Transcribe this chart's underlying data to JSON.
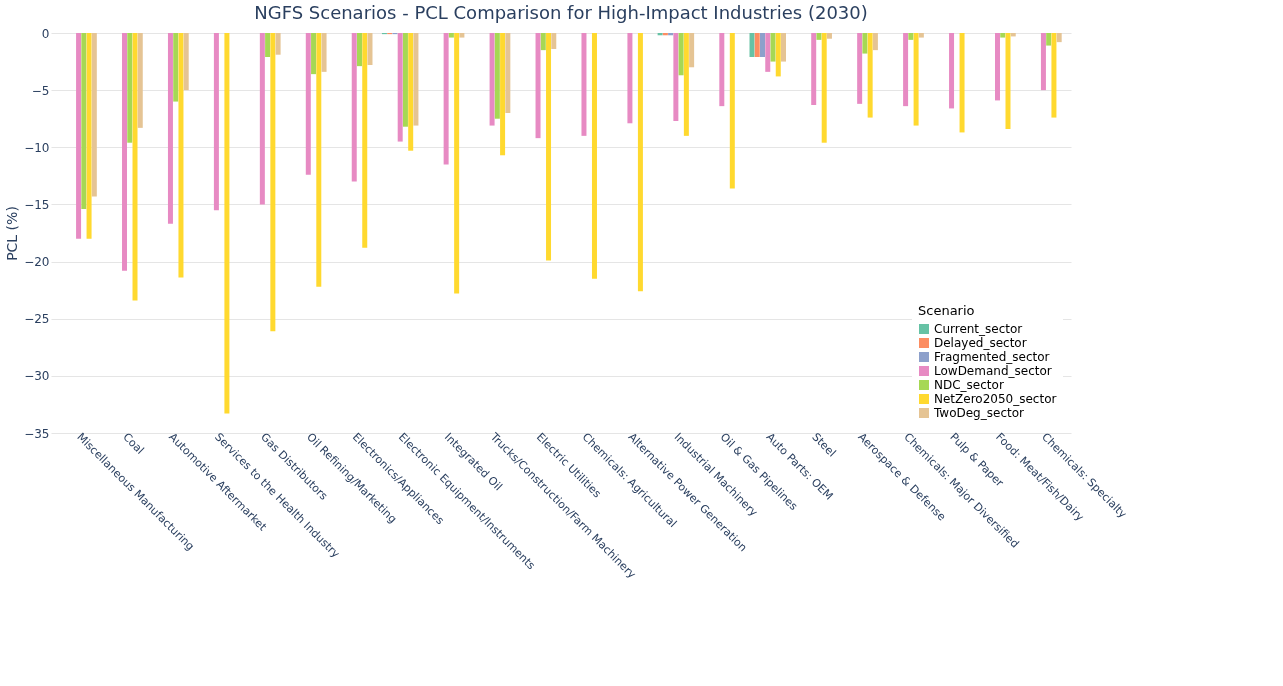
{
  "chart_data": {
    "type": "bar",
    "title": "NGFS Scenarios - PCL Comparison for High-Impact Industries (2030)",
    "ylabel": "PCL (%)",
    "legend_title": "Scenario",
    "categories": [
      "Miscellaneous Manufacturing",
      "Coal",
      "Automotive Aftermarket",
      "Services to the Health Industry",
      "Gas Distributors",
      "Oil Refining/Marketing",
      "Electronics/Appliances",
      "Electronic Equipment/Instruments",
      "Integrated Oil",
      "Trucks/Construction/Farm Machinery",
      "Electric Utilities",
      "Chemicals: Agricultural",
      "Alternative Power Generation",
      "Industrial Machinery",
      "Oil & Gas Pipelines",
      "Auto Parts: OEM",
      "Steel",
      "Aerospace & Defense",
      "Chemicals: Major Diversified",
      "Pulp & Paper",
      "Food: Meat/Fish/Dairy",
      "Chemicals: Specialty"
    ],
    "series": [
      {
        "name": "Current_sector",
        "color": "#66c2a5",
        "values": [
          0,
          0,
          0,
          0,
          0,
          0,
          0,
          -0.1,
          0,
          0,
          0,
          0,
          0,
          -0.2,
          0,
          -2.1,
          0,
          0,
          0,
          0,
          0,
          0
        ]
      },
      {
        "name": "Delayed_sector",
        "color": "#fc8d62",
        "values": [
          0,
          0,
          0,
          0,
          0,
          0,
          0,
          -0.1,
          0,
          0,
          0,
          0,
          0,
          -0.2,
          0,
          -2.1,
          0,
          0,
          0,
          0,
          0,
          0
        ]
      },
      {
        "name": "Fragmented_sector",
        "color": "#8da0cb",
        "values": [
          0,
          0,
          0,
          0,
          0,
          0,
          0,
          -0.1,
          0,
          0,
          0,
          0,
          0,
          -0.2,
          0,
          -2.1,
          0,
          0,
          0,
          0,
          0,
          0
        ]
      },
      {
        "name": "LowDemand_sector",
        "color": "#e78ac3",
        "values": [
          -18,
          -20.8,
          -16.7,
          -15.5,
          -15,
          -12.4,
          -13,
          -9.5,
          -11.5,
          -8.1,
          -9.2,
          -9,
          -7.9,
          -7.7,
          -6.4,
          -3.4,
          -6.3,
          -6.2,
          -6.4,
          -6.6,
          -5.9,
          -5
        ]
      },
      {
        "name": "NDC_sector",
        "color": "#a6d854",
        "values": [
          -15.4,
          -9.6,
          -6,
          0,
          -2.1,
          -3.6,
          -2.9,
          -8.2,
          -0.4,
          -7.5,
          -1.5,
          0,
          0,
          -3.7,
          0,
          -2.5,
          -0.6,
          -1.8,
          -0.6,
          0,
          -0.4,
          -1.1
        ]
      },
      {
        "name": "NetZero2050_sector",
        "color": "#ffd92f",
        "values": [
          -18,
          -23.4,
          -21.4,
          -33.3,
          -26.1,
          -22.2,
          -18.8,
          -10.3,
          -22.8,
          -10.7,
          -19.9,
          -21.5,
          -22.6,
          -9,
          -13.6,
          -3.8,
          -9.6,
          -7.4,
          -8.1,
          -8.7,
          -8.4,
          -7.4
        ]
      },
      {
        "name": "TwoDeg_sector",
        "color": "#e5c494",
        "values": [
          -14.3,
          -8.3,
          -5,
          0,
          -1.9,
          -3.4,
          -2.8,
          -8.1,
          -0.4,
          -7,
          -1.4,
          0,
          0,
          -3,
          0,
          -2.5,
          -0.5,
          -1.5,
          -0.4,
          0,
          -0.3,
          -0.8
        ]
      }
    ],
    "ylim": [
      -35,
      0
    ],
    "yticks": [
      -35,
      -30,
      -25,
      -20,
      -15,
      -10,
      -5,
      0
    ],
    "grid": "y",
    "legend": "bottom right"
  }
}
